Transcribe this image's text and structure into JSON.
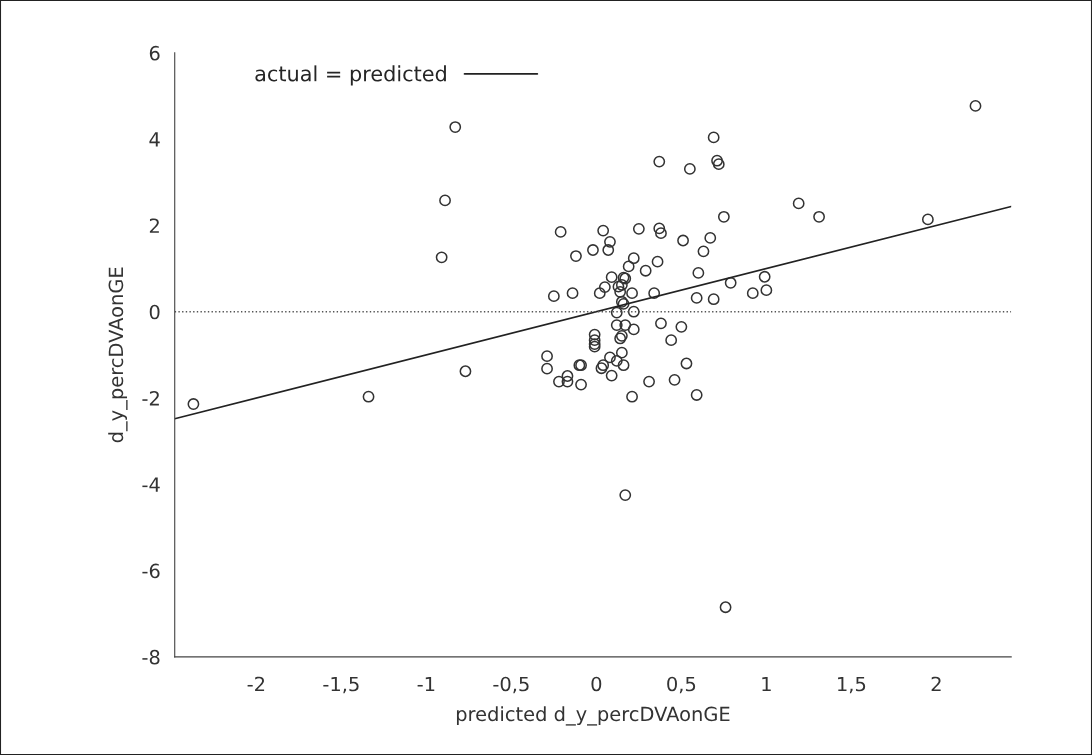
{
  "chart_data": {
    "type": "scatter",
    "xlabel": "predicted d_y_percDVAonGE",
    "ylabel": "d_y_percDVAonGE",
    "xlim": [
      -2.48,
      2.44
    ],
    "ylim": [
      -8,
      6
    ],
    "xticks": [
      {
        "value": -2,
        "label": "-2"
      },
      {
        "value": -1.5,
        "label": "-1,5"
      },
      {
        "value": -1,
        "label": "-1"
      },
      {
        "value": -0.5,
        "label": "-0,5"
      },
      {
        "value": 0,
        "label": "0"
      },
      {
        "value": 0.5,
        "label": "0,5"
      },
      {
        "value": 1,
        "label": "1"
      },
      {
        "value": 1.5,
        "label": "1,5"
      },
      {
        "value": 2,
        "label": "2"
      }
    ],
    "yticks": [
      {
        "value": -8,
        "label": "-8"
      },
      {
        "value": -6,
        "label": "-6"
      },
      {
        "value": -4,
        "label": "-4"
      },
      {
        "value": -2,
        "label": "-2"
      },
      0,
      2,
      4,
      6
    ],
    "grid": false,
    "legend": "top left",
    "marker": "circle",
    "ref_lines": [
      {
        "axis": "y",
        "value": 0,
        "line_style": "dotted",
        "color": "#555555"
      }
    ],
    "series": [
      {
        "color": "#333333",
        "x": [
          -2.37,
          -1.34,
          -0.83,
          -0.89,
          -0.91,
          -0.77,
          -0.21,
          0.04,
          0.08,
          -0.02,
          0.07,
          -0.12,
          -0.25,
          -0.14,
          0.02,
          0.05,
          0.09,
          -0.29,
          -0.29,
          -0.22,
          -0.17,
          -0.17,
          -0.1,
          -0.09,
          -0.09,
          -0.01,
          -0.01,
          -0.01,
          -0.01,
          0.03,
          0.04,
          0.08,
          0.09,
          0.37,
          0.55,
          0.69,
          0.71,
          0.72,
          0.75,
          0.25,
          0.37,
          0.38,
          0.51,
          0.67,
          0.63,
          0.22,
          0.19,
          0.36,
          0.29,
          0.6,
          0.16,
          0.17,
          0.13,
          0.15,
          0.14,
          0.21,
          0.34,
          0.59,
          0.69,
          0.79,
          0.92,
          0.99,
          1.0,
          1.19,
          1.31,
          1.95,
          2.23,
          0.15,
          0.16,
          0.22,
          0.12,
          0.12,
          0.17,
          0.22,
          0.38,
          0.5,
          0.44,
          0.14,
          0.15,
          0.12,
          0.15,
          0.16,
          0.53,
          0.31,
          0.46,
          0.21,
          0.59,
          0.17,
          0.76
        ],
        "values": [
          -2.14,
          -1.97,
          4.28,
          2.58,
          1.26,
          -1.38,
          1.85,
          1.88,
          1.62,
          1.43,
          1.43,
          1.29,
          0.36,
          0.43,
          0.43,
          0.57,
          0.8,
          -1.03,
          -1.32,
          -1.62,
          -1.49,
          -1.62,
          -1.24,
          -1.24,
          -1.69,
          -0.53,
          -0.66,
          -0.75,
          -0.81,
          -1.31,
          -1.24,
          -1.06,
          -1.48,
          3.48,
          3.31,
          4.04,
          3.5,
          3.42,
          2.2,
          1.92,
          1.93,
          1.82,
          1.65,
          1.71,
          1.4,
          1.24,
          1.05,
          1.16,
          0.95,
          0.9,
          0.79,
          0.77,
          0.58,
          0.62,
          0.46,
          0.43,
          0.43,
          0.32,
          0.29,
          0.67,
          0.43,
          0.81,
          0.5,
          2.51,
          2.2,
          2.14,
          4.77,
          0.23,
          0.18,
          0.0,
          -0.02,
          -0.31,
          -0.31,
          -0.41,
          -0.27,
          -0.35,
          -0.66,
          -0.62,
          -0.56,
          -1.14,
          -0.95,
          -1.24,
          -1.2,
          -1.62,
          -1.58,
          -1.97,
          -1.93,
          -4.25,
          -6.85
        ]
      },
      {
        "type": "line",
        "name": "actual = predicted",
        "color": "#222222",
        "line_style": "solid",
        "marker": "none",
        "x": [
          -2.48,
          2.44
        ],
        "values": [
          -2.48,
          2.44
        ]
      }
    ]
  }
}
